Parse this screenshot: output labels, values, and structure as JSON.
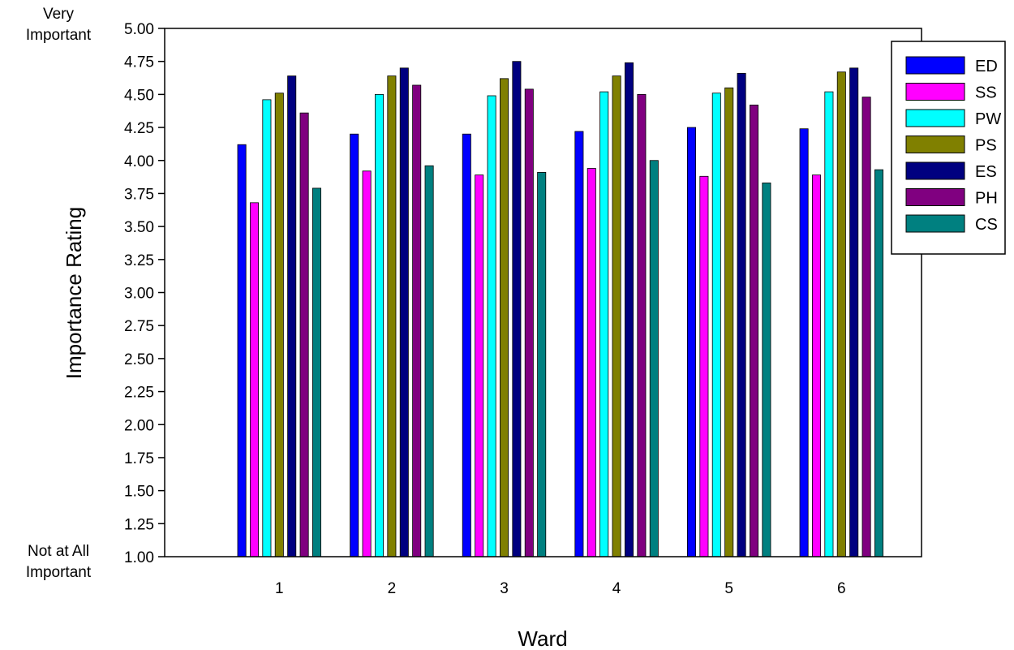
{
  "chart_data": {
    "type": "bar",
    "title": "",
    "xlabel": "Ward",
    "ylabel": "Importance Rating",
    "ylim": [
      1.0,
      5.0
    ],
    "yticks": [
      "1.00",
      "1.25",
      "1.50",
      "1.75",
      "2.00",
      "2.25",
      "2.50",
      "2.75",
      "3.00",
      "3.25",
      "3.50",
      "3.75",
      "4.00",
      "4.25",
      "4.50",
      "4.75",
      "5.00"
    ],
    "y_top_label": [
      "Very",
      "Important"
    ],
    "y_bottom_label": [
      "Not at All",
      "Important"
    ],
    "categories": [
      "1",
      "2",
      "3",
      "4",
      "5",
      "6"
    ],
    "legend_position": "top-right",
    "grid": false,
    "series": [
      {
        "name": "ED",
        "color": "#0000ff",
        "values": [
          4.12,
          4.2,
          4.2,
          4.22,
          4.25,
          4.24
        ]
      },
      {
        "name": "SS",
        "color": "#ff00ff",
        "values": [
          3.68,
          3.92,
          3.89,
          3.94,
          3.88,
          3.89
        ]
      },
      {
        "name": "PW",
        "color": "#00ffff",
        "values": [
          4.46,
          4.5,
          4.49,
          4.52,
          4.51,
          4.52
        ]
      },
      {
        "name": "PS",
        "color": "#808000",
        "values": [
          4.51,
          4.64,
          4.62,
          4.64,
          4.55,
          4.67
        ]
      },
      {
        "name": "ES",
        "color": "#000080",
        "values": [
          4.64,
          4.7,
          4.75,
          4.74,
          4.66,
          4.7
        ]
      },
      {
        "name": "PH",
        "color": "#800080",
        "values": [
          4.36,
          4.57,
          4.54,
          4.5,
          4.42,
          4.48
        ]
      },
      {
        "name": "CS",
        "color": "#008080",
        "values": [
          3.79,
          3.96,
          3.91,
          4.0,
          3.83,
          3.93
        ]
      }
    ]
  }
}
